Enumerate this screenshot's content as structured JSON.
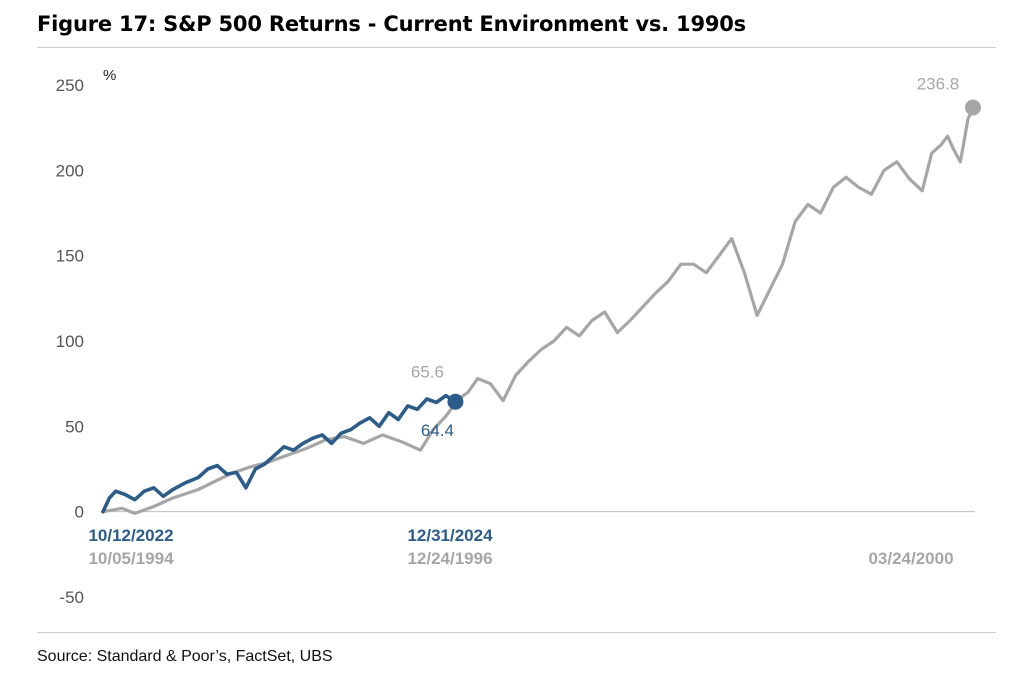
{
  "colors": {
    "current": "#2c5c8a",
    "nineties": "#a6a6a6",
    "axis": "#bfbfbf",
    "tick_text": "#555555"
  },
  "footer": {
    "source": "Source: Standard & Poor’s, FactSet, UBS"
  },
  "chart_data": {
    "type": "line",
    "title": "Figure 17: S&P 500 Returns - Current Environment vs. 1990s",
    "ylabel": "%",
    "xlabel": "",
    "ylim": [
      -50,
      250
    ],
    "xlim": [
      0,
      1370
    ],
    "yticks": [
      250,
      200,
      150,
      100,
      50,
      0,
      -50
    ],
    "x_unit": "trading days since start",
    "grid": false,
    "series": [
      {
        "name": "1990s (10/05/1994 - 03/24/2000)",
        "color_key": "nineties",
        "x": [
          0,
          30,
          50,
          80,
          110,
          150,
          200,
          230,
          260,
          290,
          320,
          350,
          380,
          410,
          440,
          470,
          500,
          520,
          540,
          560,
          575,
          590,
          610,
          630,
          650,
          670,
          690,
          710,
          730,
          750,
          770,
          790,
          810,
          830,
          850,
          870,
          890,
          910,
          930,
          950,
          970,
          990,
          1010,
          1030,
          1050,
          1070,
          1090,
          1110,
          1130,
          1150,
          1170,
          1190,
          1210,
          1230,
          1250,
          1270,
          1290,
          1305,
          1320,
          1330,
          1340,
          1350,
          1355,
          1362,
          1370
        ],
        "y": [
          0,
          2,
          -1,
          3,
          8,
          13,
          22,
          26,
          29,
          33,
          37,
          42,
          44,
          40,
          45,
          41,
          36,
          48,
          56,
          66,
          70,
          78,
          75,
          65,
          80,
          88,
          95,
          100,
          108,
          103,
          112,
          117,
          105,
          112,
          120,
          128,
          135,
          145,
          145,
          140,
          150,
          160,
          140,
          115,
          130,
          145,
          170,
          180,
          175,
          190,
          196,
          190,
          186,
          200,
          205,
          195,
          188,
          210,
          215,
          220,
          212,
          205,
          215,
          230,
          236.8
        ]
      },
      {
        "name": "Current (10/12/2022 - 12/31/2024)",
        "color_key": "current",
        "x": [
          0,
          10,
          20,
          35,
          50,
          65,
          80,
          95,
          110,
          130,
          150,
          165,
          180,
          195,
          210,
          225,
          240,
          255,
          270,
          285,
          300,
          315,
          330,
          345,
          360,
          375,
          390,
          405,
          420,
          435,
          450,
          465,
          480,
          495,
          510,
          525,
          540,
          555
        ],
        "y": [
          0,
          8,
          12,
          10,
          7,
          12,
          14,
          9,
          13,
          17,
          20,
          25,
          27,
          22,
          23,
          14,
          25,
          28,
          33,
          38,
          36,
          40,
          43,
          45,
          40,
          46,
          48,
          52,
          55,
          50,
          58,
          54,
          62,
          60,
          66,
          64,
          68,
          64.4
        ]
      }
    ],
    "annotations": [
      {
        "text": "236.8",
        "x": 1370,
        "y": 236.8,
        "color_key": "nineties"
      },
      {
        "text": "65.6",
        "x": 555,
        "y": 65.6,
        "color_key": "nineties"
      },
      {
        "text": "64.4",
        "x": 555,
        "y": 64.4,
        "color_key": "current"
      }
    ],
    "x_date_labels": [
      {
        "x": 0,
        "current": "10/12/2022",
        "nineties": "10/05/1994"
      },
      {
        "x": 555,
        "current": "12/31/2024",
        "nineties": "12/24/1996"
      },
      {
        "x": 1370,
        "current": "",
        "nineties": "03/24/2000"
      }
    ]
  }
}
